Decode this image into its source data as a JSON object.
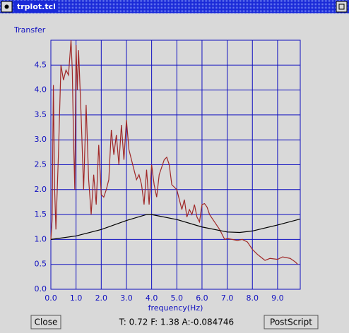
{
  "window": {
    "title": "trplot.tcl"
  },
  "buttons": [
    "Close",
    "PostScript"
  ],
  "status": "T: 0.72 F: 1.38 A:-0.084746",
  "chart_data": {
    "type": "line",
    "y_label": "Transfer",
    "x_label": "frequency(Hz)",
    "xlim": [
      0,
      9.9
    ],
    "ylim": [
      0,
      5.0
    ],
    "grid": true,
    "grid_color": "#1010c0",
    "xticks": [
      {
        "value": 0,
        "label": "0.0"
      },
      {
        "value": 1,
        "label": "1.0"
      },
      {
        "value": 2,
        "label": "2.0"
      },
      {
        "value": 3,
        "label": "3.0"
      },
      {
        "value": 4,
        "label": "4.0"
      },
      {
        "value": 5,
        "label": "5.0"
      },
      {
        "value": 6,
        "label": "6.0"
      },
      {
        "value": 7,
        "label": "7.0"
      },
      {
        "value": 8,
        "label": "8.0"
      },
      {
        "value": 9,
        "label": "9.0"
      }
    ],
    "yticks": [
      {
        "value": 0,
        "label": "0.0"
      },
      0.5,
      {
        "value": 1,
        "label": "1.0"
      },
      1.5,
      {
        "value": 2,
        "label": "2.0"
      },
      2.5,
      {
        "value": 3,
        "label": "3.0"
      },
      3.5,
      {
        "value": 4,
        "label": "4.0"
      },
      4.5
    ],
    "series": [
      {
        "color": "#a02828",
        "x": [
          0,
          0.05,
          0.1,
          0.15,
          0.2,
          0.3,
          0.4,
          0.5,
          0.6,
          0.7,
          0.8,
          0.85,
          0.9,
          0.95,
          1.0,
          1.05,
          1.1,
          1.2,
          1.3,
          1.4,
          1.5,
          1.6,
          1.7,
          1.8,
          1.9,
          2.0,
          2.1,
          2.2,
          2.3,
          2.4,
          2.5,
          2.6,
          2.7,
          2.8,
          2.9,
          3.0,
          3.1,
          3.2,
          3.3,
          3.4,
          3.5,
          3.6,
          3.7,
          3.8,
          3.9,
          4.0,
          4.1,
          4.2,
          4.3,
          4.5,
          4.6,
          4.7,
          4.8,
          5.0,
          5.1,
          5.2,
          5.3,
          5.4,
          5.5,
          5.6,
          5.7,
          5.8,
          5.9,
          6.0,
          6.1,
          6.2,
          6.3,
          6.5,
          6.7,
          6.8,
          6.9,
          7.0,
          7.2,
          7.4,
          7.6,
          7.8,
          8.0,
          8.2,
          8.4,
          8.5,
          8.7,
          9.0,
          9.2,
          9.5,
          9.7,
          9.8
        ],
        "values": [
          1.0,
          1.4,
          4.1,
          2.0,
          1.2,
          2.7,
          4.5,
          4.2,
          4.4,
          4.3,
          5.0,
          4.4,
          3.0,
          2.0,
          4.9,
          4.0,
          4.8,
          3.5,
          2.0,
          3.7,
          2.2,
          1.5,
          2.3,
          1.7,
          2.9,
          1.9,
          1.85,
          2.0,
          2.2,
          3.2,
          2.7,
          3.1,
          2.5,
          3.3,
          2.6,
          3.4,
          2.8,
          2.6,
          2.4,
          2.2,
          2.3,
          2.1,
          1.7,
          2.4,
          1.7,
          2.5,
          2.1,
          1.85,
          2.3,
          2.6,
          2.65,
          2.5,
          2.1,
          2.0,
          1.8,
          1.6,
          1.8,
          1.45,
          1.6,
          1.5,
          1.7,
          1.45,
          1.35,
          1.7,
          1.72,
          1.65,
          1.5,
          1.35,
          1.2,
          1.1,
          1.0,
          1.02,
          1.0,
          0.98,
          1.0,
          0.95,
          0.8,
          0.7,
          0.62,
          0.58,
          0.62,
          0.6,
          0.65,
          0.62,
          0.55,
          0.5
        ]
      },
      {
        "color": "#000000",
        "x": [
          0,
          1,
          2,
          3,
          3.8,
          4,
          5,
          6,
          7,
          7.5,
          8,
          9,
          9.9
        ],
        "values": [
          1.0,
          1.07,
          1.2,
          1.38,
          1.5,
          1.5,
          1.4,
          1.25,
          1.15,
          1.14,
          1.17,
          1.29,
          1.41
        ]
      }
    ]
  }
}
